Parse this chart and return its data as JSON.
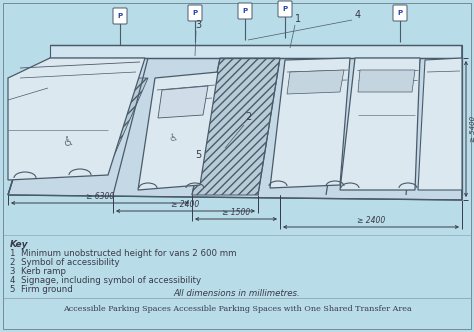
{
  "background_color": "#b8dce8",
  "title": "Accessible Parking Spaces Accessible Parking Spaces with One Shared Transfer Area",
  "key_title": "Key",
  "key_items": [
    "1  Minimum unobstructed height for vans 2 600 mm",
    "2  Symbol of accessibility",
    "3  Kerb ramp",
    "4  Signage, including symbol of accessibility",
    "5  Firm ground"
  ],
  "dimensions_note": "All dimensions in millimetres.",
  "dim_labels": [
    "≥ 6300",
    "≥ 2400",
    "≥ 1500",
    "≥ 2400",
    "≥ 5400"
  ],
  "callout_numbers": [
    "1",
    "2",
    "3",
    "4",
    "5"
  ],
  "line_color": "#4a5a6a",
  "text_color": "#3a3a4a",
  "dim_color": "#3a3a4a",
  "border_color": "#5a6a7a"
}
